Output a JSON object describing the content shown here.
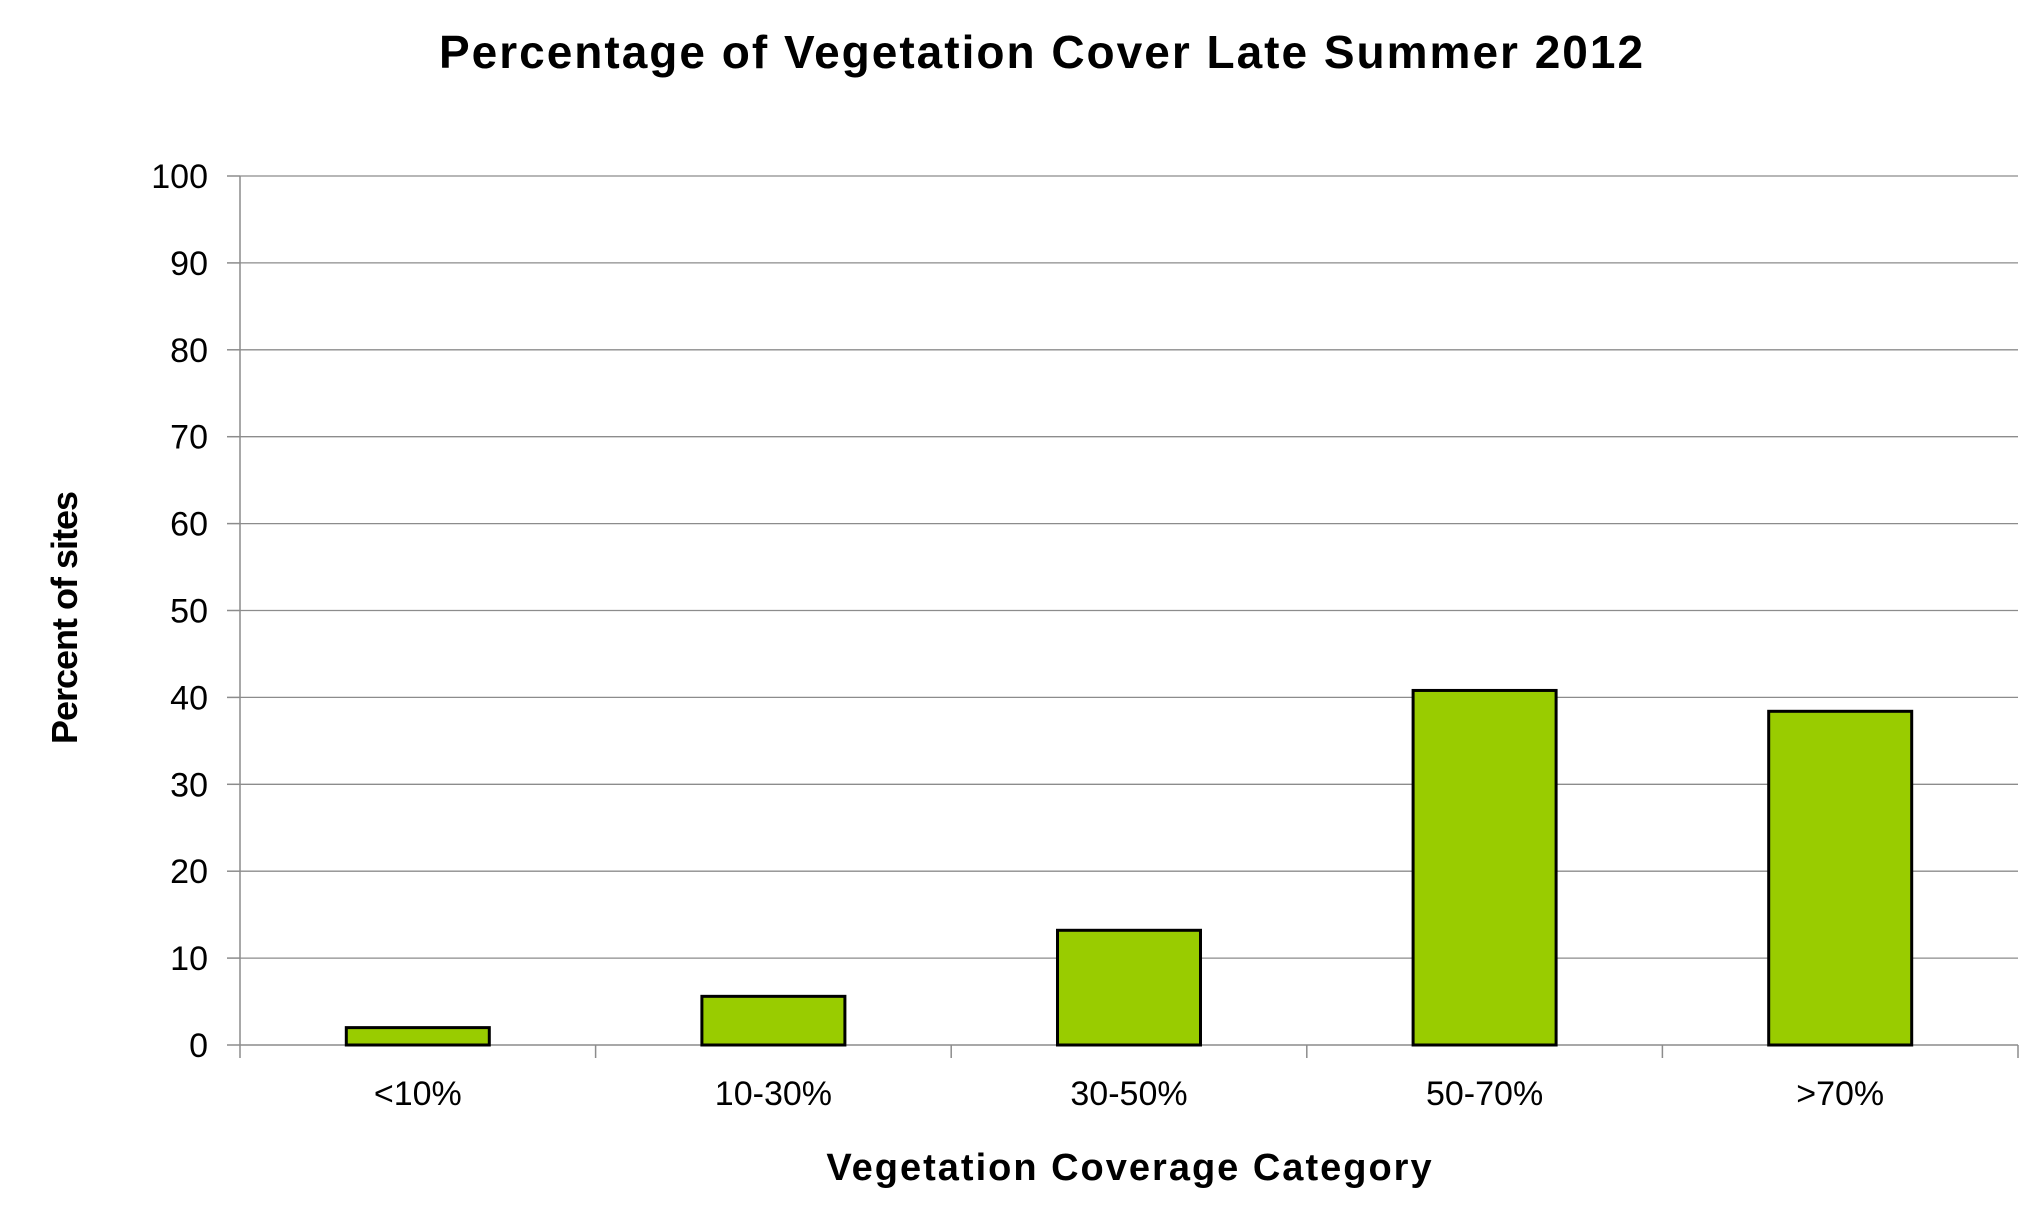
{
  "chart_data": {
    "type": "bar",
    "title": "Percentage of Vegetation Cover Late Summer 2012",
    "xlabel": "Vegetation Coverage Category",
    "ylabel": "Percent of sites",
    "categories": [
      "<10%",
      "10-30%",
      "30-50%",
      "50-70%",
      ">70%"
    ],
    "values": [
      2,
      5.6,
      13.2,
      40.8,
      38.4
    ],
    "ylim": [
      0,
      100
    ],
    "yticks": [
      0,
      10,
      20,
      30,
      40,
      50,
      60,
      70,
      80,
      90,
      100
    ],
    "grid": true,
    "legend": "none",
    "colors": {
      "bar_fill": "#99cc00",
      "bar_edge": "#000000",
      "gridline": "#8c8c8c"
    }
  }
}
